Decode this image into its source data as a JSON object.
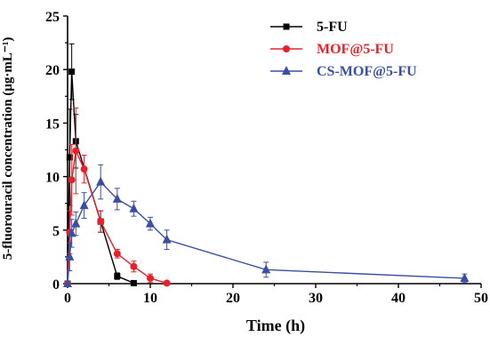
{
  "chart_data": {
    "type": "line",
    "xlabel": "Time (h)",
    "ylabel": "5-fluorouracil concentration (μg·mL⁻¹)",
    "xlim": [
      0,
      50
    ],
    "ylim": [
      0,
      25
    ],
    "xticks": [
      0,
      10,
      20,
      30,
      40,
      50
    ],
    "yticks": [
      0,
      5,
      10,
      15,
      20,
      25
    ],
    "grid": false,
    "legend_position": "top-right",
    "series": [
      {
        "name": "5-FU",
        "color": "#000000",
        "marker": "square",
        "x": [
          0,
          0.25,
          0.5,
          1,
          4,
          6,
          8
        ],
        "y": [
          0,
          11.8,
          19.8,
          13.3,
          5.8,
          0.7,
          0.05
        ],
        "err": [
          0,
          4.5,
          2.6,
          2.5,
          1.0,
          0.3,
          0.05
        ]
      },
      {
        "name": "MOF@5-FU",
        "color": "#e8202a",
        "marker": "circle",
        "x": [
          0,
          0.25,
          0.5,
          1,
          2,
          4,
          6,
          8,
          10,
          12
        ],
        "y": [
          0,
          4.8,
          9.7,
          12.4,
          10.7,
          5.8,
          2.8,
          1.6,
          0.5,
          0.05
        ],
        "err": [
          0,
          2.0,
          3.3,
          4.0,
          1.3,
          1.0,
          0.4,
          0.5,
          0.4,
          0.05
        ]
      },
      {
        "name": "CS-MOF@5-FU",
        "color": "#3b4fa2",
        "marker": "triangle",
        "x": [
          0,
          0.25,
          0.5,
          1,
          2,
          4,
          6,
          8,
          10,
          12,
          24,
          48
        ],
        "y": [
          0,
          2.5,
          4.7,
          5.6,
          7.3,
          9.5,
          7.9,
          7.0,
          5.6,
          4.1,
          1.3,
          0.5
        ],
        "err": [
          0,
          1.3,
          1.3,
          1.1,
          1.2,
          1.6,
          1.0,
          0.7,
          0.6,
          0.9,
          0.7,
          0.4
        ]
      }
    ]
  }
}
